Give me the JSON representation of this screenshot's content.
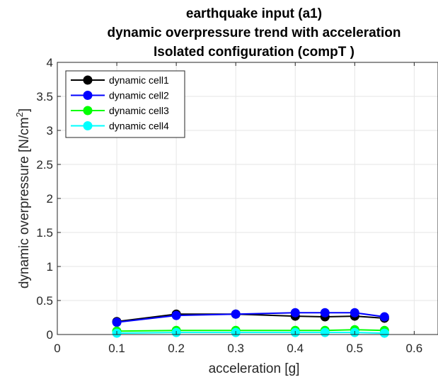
{
  "chart_data": {
    "type": "line",
    "title_lines": [
      "earthquake input (a1)",
      "dynamic overpressure trend with acceleration",
      "Isolated configuration (compT )"
    ],
    "xlabel": "acceleration [g]",
    "ylabel": "dynamic overpressure [N/cm",
    "ylabel_superscript": "2",
    "ylabel_suffix": "]",
    "xlim": [
      0,
      0.64
    ],
    "ylim": [
      0,
      4
    ],
    "xticks": [
      "0",
      "0.1",
      "0.2",
      "0.3",
      "0.4",
      "0.5",
      "0.6"
    ],
    "yticks": [
      "0",
      "0.5",
      "1",
      "1.5",
      "2",
      "2.5",
      "3",
      "3.5",
      "4"
    ],
    "grid": true,
    "legend_position": "top-left",
    "x": [
      0.1,
      0.2,
      0.3,
      0.4,
      0.45,
      0.5,
      0.55
    ],
    "series": [
      {
        "name": "dynamic cell1",
        "color": "#000000",
        "values": [
          0.19,
          0.3,
          0.3,
          0.27,
          0.26,
          0.27,
          0.24
        ]
      },
      {
        "name": "dynamic cell2",
        "color": "#0000ff",
        "values": [
          0.18,
          0.28,
          0.3,
          0.32,
          0.32,
          0.32,
          0.26
        ]
      },
      {
        "name": "dynamic cell3",
        "color": "#00ff00",
        "values": [
          0.05,
          0.06,
          0.06,
          0.06,
          0.06,
          0.07,
          0.06
        ]
      },
      {
        "name": "dynamic cell4",
        "color": "#00ffff",
        "values": [
          0.02,
          0.03,
          0.03,
          0.03,
          0.03,
          0.03,
          0.02
        ]
      }
    ]
  }
}
